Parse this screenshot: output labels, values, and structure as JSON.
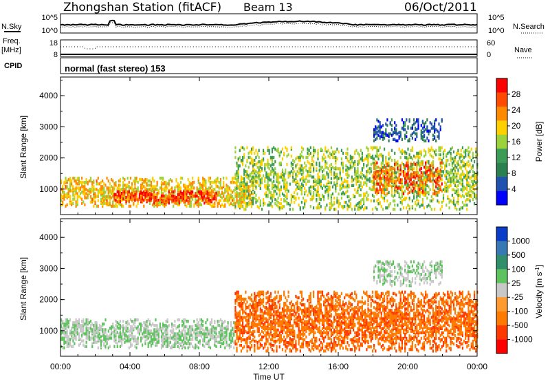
{
  "header": {
    "station": "Zhongshan Station (fitACF)",
    "beam": "Beam 13",
    "date": "06/Oct/2011"
  },
  "panels": {
    "nsky": {
      "left_label": "N.Sky",
      "right_label": "N.Search",
      "left_top": "10^5",
      "left_bottom": "10^0",
      "right_top": "10^5",
      "right_bottom": "10^0"
    },
    "freq": {
      "left_label_line1": "Freq.",
      "left_label_line2": "[MHz]",
      "right_label": "Nave",
      "left_top": "18",
      "left_bottom": "8",
      "right_top": "60",
      "right_bottom": "0"
    },
    "cpid": {
      "label": "CPID",
      "text": "normal (fast stereo) 153"
    }
  },
  "colors": {
    "power_scale": [
      "#0000ff",
      "#2050b0",
      "#2c7f4e",
      "#3c9c55",
      "#9cd23c",
      "#ffd000",
      "#ff8a00",
      "#ff4a00",
      "#ff0000"
    ],
    "velocity_scale": [
      "#0a3cc8",
      "#3878b4",
      "#2e8f6a",
      "#5ec25e",
      "#c8c8c8",
      "#ff9a30",
      "#ff7a00",
      "#ff3a00",
      "#ff0000"
    ]
  },
  "chart_data": [
    {
      "type": "heatmap",
      "title": "",
      "xlabel": "Time UT",
      "ylabel": "Slant Range [km]",
      "xticks": [
        "00:00",
        "04:00",
        "08:00",
        "12:00",
        "16:00",
        "20:00",
        "00:00"
      ],
      "yticks": [
        "1000",
        "2000",
        "3000",
        "4000"
      ],
      "xlim": [
        0,
        24
      ],
      "ylim": [
        180,
        4600
      ],
      "colorbar": {
        "label": "Power [dB]",
        "ticks": [
          "4",
          "8",
          "12",
          "16",
          "20",
          "24",
          "28"
        ],
        "range": [
          0,
          32
        ]
      },
      "features": [
        {
          "t": [
            0,
            11
          ],
          "range": [
            400,
            1300
          ],
          "value": 20
        },
        {
          "t": [
            3,
            9
          ],
          "range": [
            500,
            900
          ],
          "value": 28
        },
        {
          "t": [
            10,
            24
          ],
          "range": [
            300,
            2300
          ],
          "value": 16
        },
        {
          "t": [
            18,
            22
          ],
          "range": [
            800,
            1800
          ],
          "value": 26
        },
        {
          "t": [
            18,
            22
          ],
          "range": [
            2500,
            3200
          ],
          "value": 6
        }
      ]
    },
    {
      "type": "heatmap",
      "title": "",
      "xlabel": "Time UT",
      "ylabel": "Slant Range [km]",
      "xticks": [
        "00:00",
        "04:00",
        "08:00",
        "12:00",
        "16:00",
        "20:00",
        "00:00"
      ],
      "yticks": [
        "1000",
        "2000",
        "3000",
        "4000"
      ],
      "xlim": [
        0,
        24
      ],
      "ylim": [
        180,
        4600
      ],
      "colorbar": {
        "label": "Velocity [m s-1]",
        "ticks": [
          "1000",
          "500",
          "100",
          "25",
          "-25",
          "-100",
          "-500",
          "-1000"
        ],
        "range": [
          -1000,
          1000
        ]
      },
      "features": [
        {
          "t": [
            0,
            10
          ],
          "range": [
            400,
            1300
          ],
          "value": 100
        },
        {
          "t": [
            10,
            24
          ],
          "range": [
            300,
            2200
          ],
          "value": -500
        },
        {
          "t": [
            18,
            22
          ],
          "range": [
            2400,
            3200
          ],
          "value": 100
        }
      ]
    }
  ]
}
